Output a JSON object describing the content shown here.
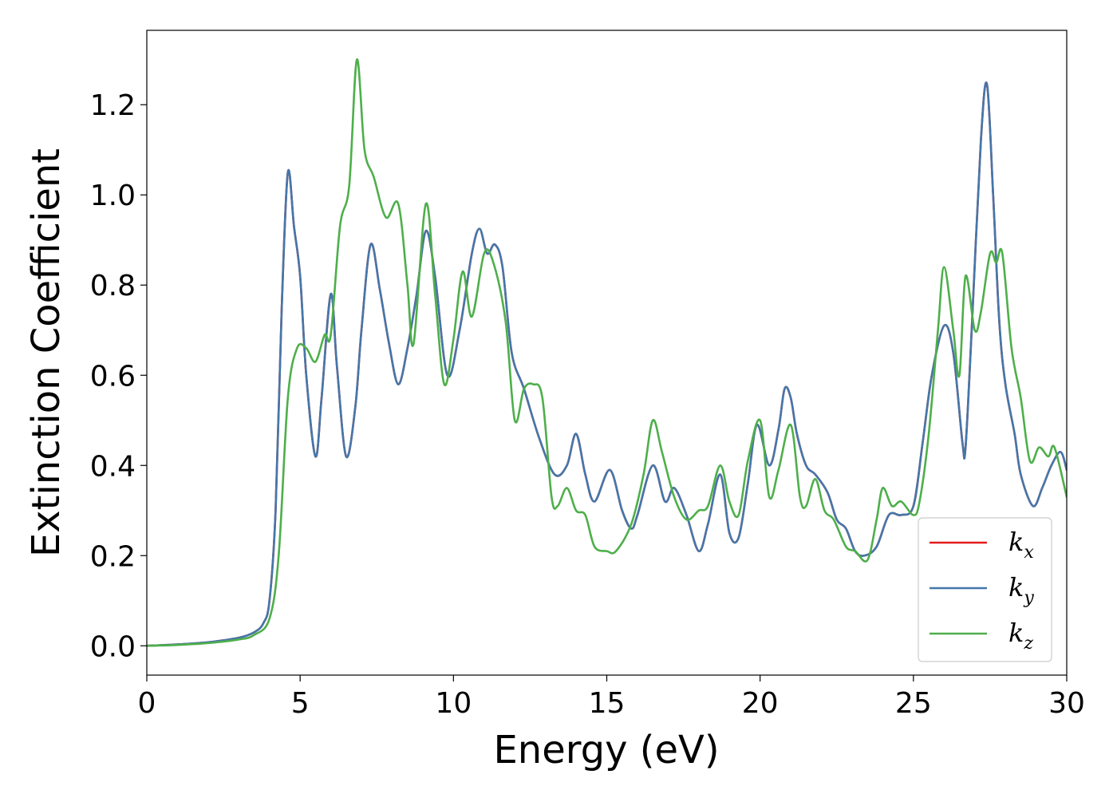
{
  "chart_data": {
    "type": "line",
    "xlabel": "Energy (eV)",
    "ylabel": "Extinction Coefficient",
    "xlim": [
      0,
      30
    ],
    "ylim": [
      -0.065,
      1.365
    ],
    "x_ticks": [
      0,
      5,
      10,
      15,
      20,
      25,
      30
    ],
    "x_tick_labels": [
      "0",
      "5",
      "10",
      "15",
      "20",
      "25",
      "30"
    ],
    "y_ticks": [
      0.0,
      0.2,
      0.4,
      0.6,
      0.8,
      1.0,
      1.2
    ],
    "y_tick_labels": [
      "0.0",
      "0.2",
      "0.4",
      "0.6",
      "0.8",
      "1.0",
      "1.2"
    ],
    "grid": false,
    "legend_position": "lower-right",
    "series": [
      {
        "name": "k",
        "subscript": "x",
        "color": "#e41a1c",
        "x": [
          0,
          1,
          2,
          3,
          3.5,
          3.8,
          4.0,
          4.2,
          4.4,
          4.6,
          4.8,
          5.0,
          5.2,
          5.5,
          5.7,
          6.0,
          6.2,
          6.5,
          6.8,
          7.0,
          7.3,
          7.6,
          7.9,
          8.2,
          8.5,
          8.8,
          9.1,
          9.4,
          9.8,
          10.2,
          10.6,
          10.85,
          11.1,
          11.35,
          11.6,
          11.9,
          12.3,
          12.8,
          13.3,
          13.7,
          14.0,
          14.3,
          14.6,
          15.1,
          15.5,
          15.8,
          16.0,
          16.5,
          16.9,
          17.2,
          17.6,
          18.0,
          18.3,
          18.7,
          19.0,
          19.3,
          19.6,
          19.9,
          20.3,
          20.6,
          20.8,
          21.0,
          21.2,
          21.5,
          21.8,
          22.2,
          22.5,
          22.8,
          23.1,
          23.4,
          23.8,
          24.2,
          24.6,
          25.0,
          25.3,
          25.6,
          26.0,
          26.3,
          26.6,
          26.7,
          26.9,
          27.2,
          27.4,
          27.6,
          27.8,
          28.0,
          28.3,
          28.5,
          28.9,
          29.2,
          29.5,
          29.8,
          30.0
        ],
        "values": [
          0.0,
          0.003,
          0.008,
          0.018,
          0.03,
          0.05,
          0.1,
          0.3,
          0.75,
          1.05,
          0.93,
          0.82,
          0.6,
          0.42,
          0.55,
          0.78,
          0.62,
          0.42,
          0.53,
          0.7,
          0.89,
          0.79,
          0.67,
          0.58,
          0.66,
          0.78,
          0.92,
          0.82,
          0.6,
          0.7,
          0.87,
          0.925,
          0.87,
          0.89,
          0.84,
          0.65,
          0.57,
          0.46,
          0.38,
          0.4,
          0.47,
          0.38,
          0.32,
          0.39,
          0.3,
          0.26,
          0.29,
          0.4,
          0.32,
          0.35,
          0.29,
          0.21,
          0.27,
          0.38,
          0.25,
          0.24,
          0.36,
          0.49,
          0.4,
          0.48,
          0.57,
          0.55,
          0.47,
          0.4,
          0.38,
          0.34,
          0.28,
          0.26,
          0.21,
          0.2,
          0.22,
          0.29,
          0.29,
          0.31,
          0.45,
          0.6,
          0.71,
          0.65,
          0.45,
          0.44,
          0.7,
          1.12,
          1.245,
          1.0,
          0.72,
          0.58,
          0.47,
          0.38,
          0.31,
          0.35,
          0.4,
          0.43,
          0.39
        ]
      },
      {
        "name": "k",
        "subscript": "y",
        "color": "#4477aa",
        "x": [
          0,
          1,
          2,
          3,
          3.5,
          3.8,
          4.0,
          4.2,
          4.4,
          4.6,
          4.8,
          5.0,
          5.2,
          5.5,
          5.7,
          6.0,
          6.2,
          6.5,
          6.8,
          7.0,
          7.3,
          7.6,
          7.9,
          8.2,
          8.5,
          8.8,
          9.1,
          9.4,
          9.8,
          10.2,
          10.6,
          10.85,
          11.1,
          11.35,
          11.6,
          11.9,
          12.3,
          12.8,
          13.3,
          13.7,
          14.0,
          14.3,
          14.6,
          15.1,
          15.5,
          15.8,
          16.0,
          16.5,
          16.9,
          17.2,
          17.6,
          18.0,
          18.3,
          18.7,
          19.0,
          19.3,
          19.6,
          19.9,
          20.3,
          20.6,
          20.8,
          21.0,
          21.2,
          21.5,
          21.8,
          22.2,
          22.5,
          22.8,
          23.1,
          23.4,
          23.8,
          24.2,
          24.6,
          25.0,
          25.3,
          25.6,
          26.0,
          26.3,
          26.6,
          26.7,
          26.9,
          27.2,
          27.4,
          27.6,
          27.8,
          28.0,
          28.3,
          28.5,
          28.9,
          29.2,
          29.5,
          29.8,
          30.0
        ],
        "values": [
          0.0,
          0.003,
          0.008,
          0.018,
          0.03,
          0.05,
          0.1,
          0.3,
          0.75,
          1.05,
          0.93,
          0.82,
          0.6,
          0.42,
          0.55,
          0.78,
          0.62,
          0.42,
          0.53,
          0.7,
          0.89,
          0.79,
          0.67,
          0.58,
          0.66,
          0.78,
          0.92,
          0.82,
          0.6,
          0.7,
          0.87,
          0.925,
          0.87,
          0.89,
          0.84,
          0.65,
          0.57,
          0.46,
          0.38,
          0.4,
          0.47,
          0.38,
          0.32,
          0.39,
          0.3,
          0.26,
          0.29,
          0.4,
          0.32,
          0.35,
          0.29,
          0.21,
          0.27,
          0.38,
          0.25,
          0.24,
          0.36,
          0.49,
          0.4,
          0.48,
          0.57,
          0.55,
          0.47,
          0.4,
          0.38,
          0.34,
          0.28,
          0.26,
          0.21,
          0.2,
          0.22,
          0.29,
          0.29,
          0.31,
          0.45,
          0.6,
          0.71,
          0.65,
          0.45,
          0.44,
          0.7,
          1.12,
          1.245,
          1.0,
          0.72,
          0.58,
          0.47,
          0.38,
          0.31,
          0.35,
          0.4,
          0.43,
          0.39
        ]
      },
      {
        "name": "k",
        "subscript": "z",
        "color": "#4daf4a",
        "x": [
          0,
          1,
          2,
          3,
          3.5,
          4.0,
          4.3,
          4.6,
          4.9,
          5.2,
          5.5,
          5.8,
          6.0,
          6.3,
          6.6,
          6.85,
          7.1,
          7.4,
          7.8,
          8.2,
          8.5,
          8.7,
          9.1,
          9.4,
          9.7,
          10.0,
          10.3,
          10.6,
          11.0,
          11.3,
          11.7,
          12.0,
          12.3,
          12.6,
          12.9,
          13.2,
          13.4,
          13.7,
          14.0,
          14.3,
          14.6,
          15.0,
          15.3,
          15.8,
          16.2,
          16.5,
          16.8,
          17.2,
          17.6,
          18.0,
          18.3,
          18.7,
          19.0,
          19.3,
          19.6,
          20.0,
          20.3,
          20.6,
          21.0,
          21.3,
          21.5,
          21.8,
          22.1,
          22.4,
          22.8,
          23.1,
          23.5,
          23.8,
          24.0,
          24.3,
          24.6,
          25.0,
          25.2,
          25.5,
          25.8,
          26.0,
          26.3,
          26.5,
          26.7,
          27.0,
          27.2,
          27.5,
          27.7,
          27.9,
          28.2,
          28.5,
          28.8,
          29.1,
          29.4,
          29.6,
          30.0
        ],
        "values": [
          0.0,
          0.002,
          0.006,
          0.014,
          0.024,
          0.06,
          0.2,
          0.55,
          0.66,
          0.66,
          0.63,
          0.69,
          0.69,
          0.93,
          1.02,
          1.3,
          1.1,
          1.04,
          0.95,
          0.98,
          0.8,
          0.67,
          0.98,
          0.78,
          0.58,
          0.68,
          0.83,
          0.73,
          0.87,
          0.85,
          0.72,
          0.5,
          0.57,
          0.58,
          0.55,
          0.33,
          0.31,
          0.35,
          0.3,
          0.29,
          0.22,
          0.21,
          0.21,
          0.27,
          0.38,
          0.5,
          0.43,
          0.33,
          0.28,
          0.3,
          0.31,
          0.4,
          0.32,
          0.29,
          0.41,
          0.5,
          0.33,
          0.39,
          0.49,
          0.33,
          0.31,
          0.37,
          0.3,
          0.28,
          0.22,
          0.21,
          0.19,
          0.28,
          0.35,
          0.31,
          0.32,
          0.29,
          0.32,
          0.47,
          0.7,
          0.84,
          0.7,
          0.6,
          0.82,
          0.7,
          0.74,
          0.87,
          0.85,
          0.87,
          0.66,
          0.55,
          0.41,
          0.44,
          0.42,
          0.44,
          0.33
        ]
      }
    ]
  }
}
